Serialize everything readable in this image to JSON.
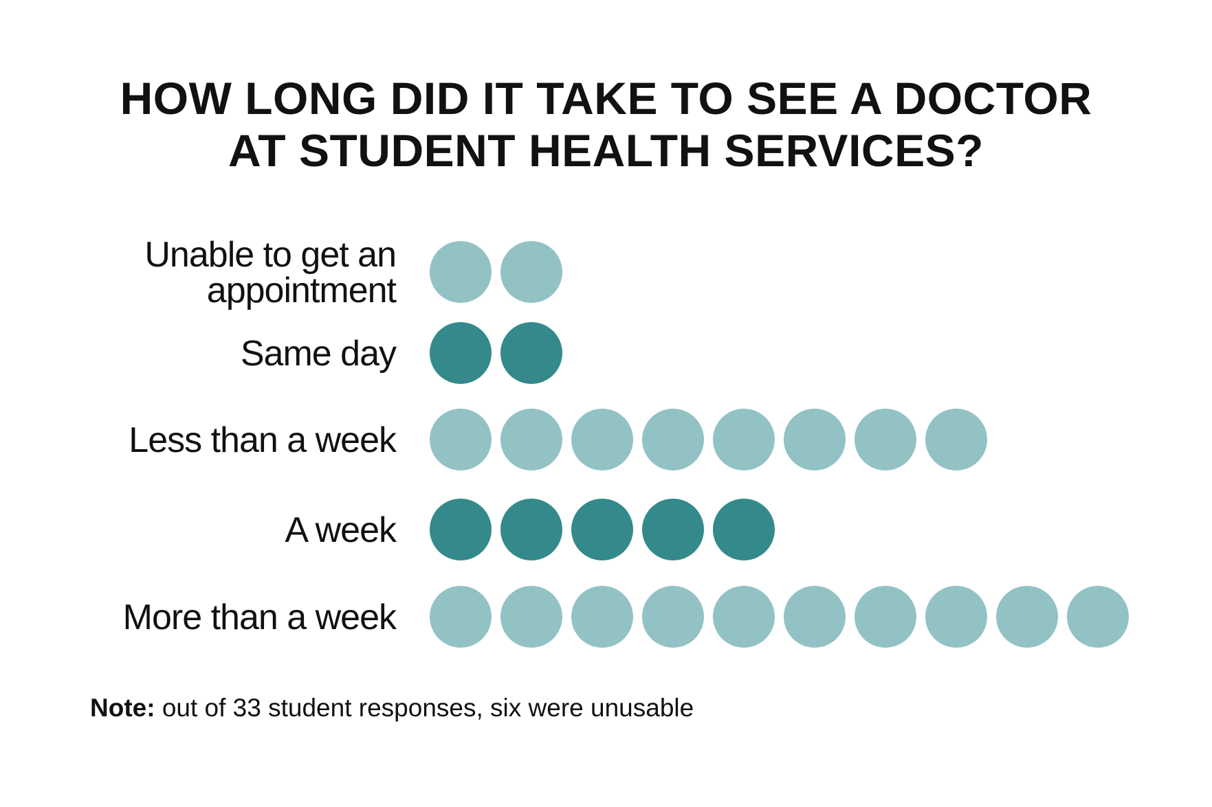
{
  "chart_data": {
    "type": "pictogram",
    "title_lines": [
      "HOW LONG DID IT TAKE TO SEE A DOCTOR",
      "AT STUDENT HEALTH SERVICES?"
    ],
    "categories": [
      {
        "label_lines": [
          "Unable to get an",
          "appointment"
        ],
        "value": 2,
        "color": "#93c2c5"
      },
      {
        "label_lines": [
          "Same day"
        ],
        "value": 2,
        "color": "#348a8a"
      },
      {
        "label_lines": [
          "Less than a week"
        ],
        "value": 8,
        "color": "#93c2c5"
      },
      {
        "label_lines": [
          "A week"
        ],
        "value": 5,
        "color": "#348a8a"
      },
      {
        "label_lines": [
          "More than a week"
        ],
        "value": 10,
        "color": "#93c2c5"
      }
    ],
    "note_label": "Note:",
    "note_text": " out of 33 student responses, six were unusable"
  }
}
